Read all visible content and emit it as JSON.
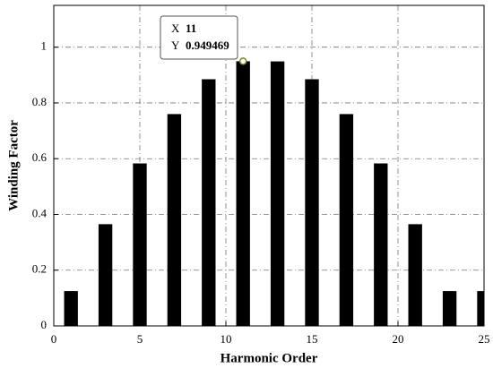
{
  "chart_data": {
    "type": "bar",
    "x_label": "Harmonic Order",
    "y_label": "Winding Factor",
    "x": [
      1,
      3,
      5,
      7,
      9,
      11,
      13,
      15,
      17,
      19,
      21,
      23,
      25
    ],
    "values": [
      0.125,
      0.365,
      0.583,
      0.76,
      0.885,
      0.949469,
      0.949,
      0.885,
      0.76,
      0.583,
      0.365,
      0.125,
      0.125
    ],
    "color": "#000000",
    "xlim": [
      0,
      25
    ],
    "xticks": [
      0,
      5,
      10,
      15,
      20,
      25
    ],
    "ylim": [
      0,
      1.15
    ],
    "yticks": [
      0,
      0.2,
      0.4,
      0.6,
      0.8,
      1
    ],
    "grid": true,
    "datatip": {
      "x_name": "X",
      "x": 11,
      "y_name": "Y",
      "y": 0.949469
    }
  }
}
